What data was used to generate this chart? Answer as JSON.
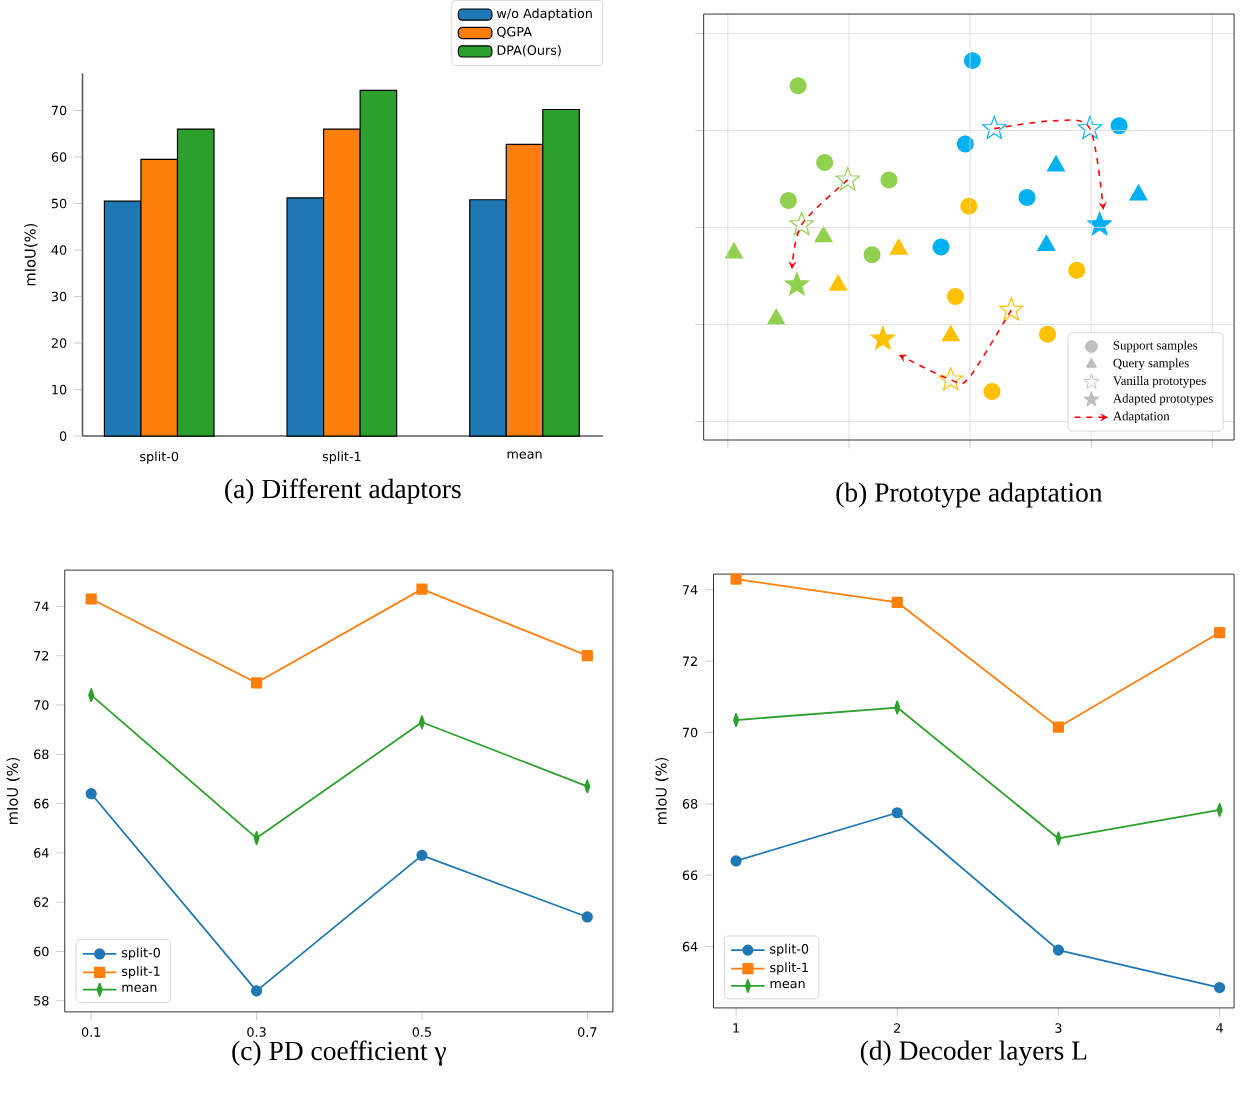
{
  "chart_data": [
    {
      "type": "bar",
      "title": "(a) Different adaptors",
      "ylabel": "mIoU(%)",
      "categories": [
        "split-0",
        "split-1",
        "mean"
      ],
      "ylim": [
        0,
        78
      ],
      "yticks": [
        0,
        10,
        20,
        30,
        40,
        50,
        60,
        70
      ],
      "legend": "top right",
      "series": [
        {
          "name": "w/o Adaptation",
          "color": "#1f77b4",
          "values": [
            50.5,
            51.2,
            50.8
          ]
        },
        {
          "name": "QGPA",
          "color": "#ff7f0e",
          "values": [
            59.5,
            66.0,
            62.7
          ]
        },
        {
          "name": "DPA(Ours)",
          "color": "#2ca02c",
          "values": [
            66.0,
            74.3,
            70.2
          ]
        }
      ]
    },
    {
      "type": "other",
      "title": "(b) Prototype adaptation",
      "legend": "bottom right",
      "series": [
        {
          "name": "Support samples",
          "marker": "circle",
          "color": "#bfbfbf"
        },
        {
          "name": "Query samples",
          "marker": "triangle",
          "color": "#bfbfbf"
        },
        {
          "name": "Vanilla prototypes",
          "marker": "star"
        },
        {
          "name": "Adapted prototypes",
          "marker": "star",
          "color": "#bfbfbf"
        },
        {
          "name": "Adaptation",
          "marker": "none",
          "color": "#ff0000",
          "line_style": "dashed"
        }
      ]
    },
    {
      "type": "line",
      "title": "(c) PD coefficient γ",
      "ylabel": "mIoU (%)",
      "x": [
        0.1,
        0.3,
        0.5,
        0.7
      ],
      "xlim": [
        0.068,
        0.731
      ],
      "xticks": [
        0.1,
        0.3,
        0.5,
        0.7
      ],
      "ylim": [
        57.55,
        75.47
      ],
      "yticks": [
        58,
        60,
        62,
        64,
        66,
        68,
        70,
        72,
        74
      ],
      "legend": "bottom left",
      "series": [
        {
          "name": "split-0",
          "color": "#1f77b4",
          "marker": "circle",
          "values": [
            66.4,
            58.4,
            63.9,
            61.4
          ]
        },
        {
          "name": "split-1",
          "color": "#ff7f0e",
          "marker": "square",
          "values": [
            74.3,
            70.9,
            74.7,
            72.0
          ]
        },
        {
          "name": "mean",
          "color": "#2ca02c",
          "marker": "diamond",
          "values": [
            70.4,
            64.6,
            69.3,
            66.7
          ]
        }
      ]
    },
    {
      "type": "line",
      "title": "(d) Decoder layers L",
      "ylabel": "mIoU (%)",
      "x": [
        1,
        2,
        3,
        4
      ],
      "xlim": [
        0.86,
        4.09
      ],
      "xticks": [
        1,
        2,
        3,
        4
      ],
      "ylim": [
        62.28,
        74.44
      ],
      "yticks": [
        64,
        66,
        68,
        70,
        72,
        74
      ],
      "legend": "bottom left",
      "series": [
        {
          "name": "split-0",
          "color": "#1f77b4",
          "marker": "circle",
          "values": [
            66.4,
            67.75,
            63.9,
            62.85
          ]
        },
        {
          "name": "split-1",
          "color": "#ff7f0e",
          "marker": "square",
          "values": [
            74.3,
            73.65,
            70.15,
            72.8
          ]
        },
        {
          "name": "mean",
          "color": "#2ca02c",
          "marker": "diamond",
          "values": [
            70.35,
            70.7,
            67.03,
            67.83
          ]
        }
      ]
    }
  ]
}
